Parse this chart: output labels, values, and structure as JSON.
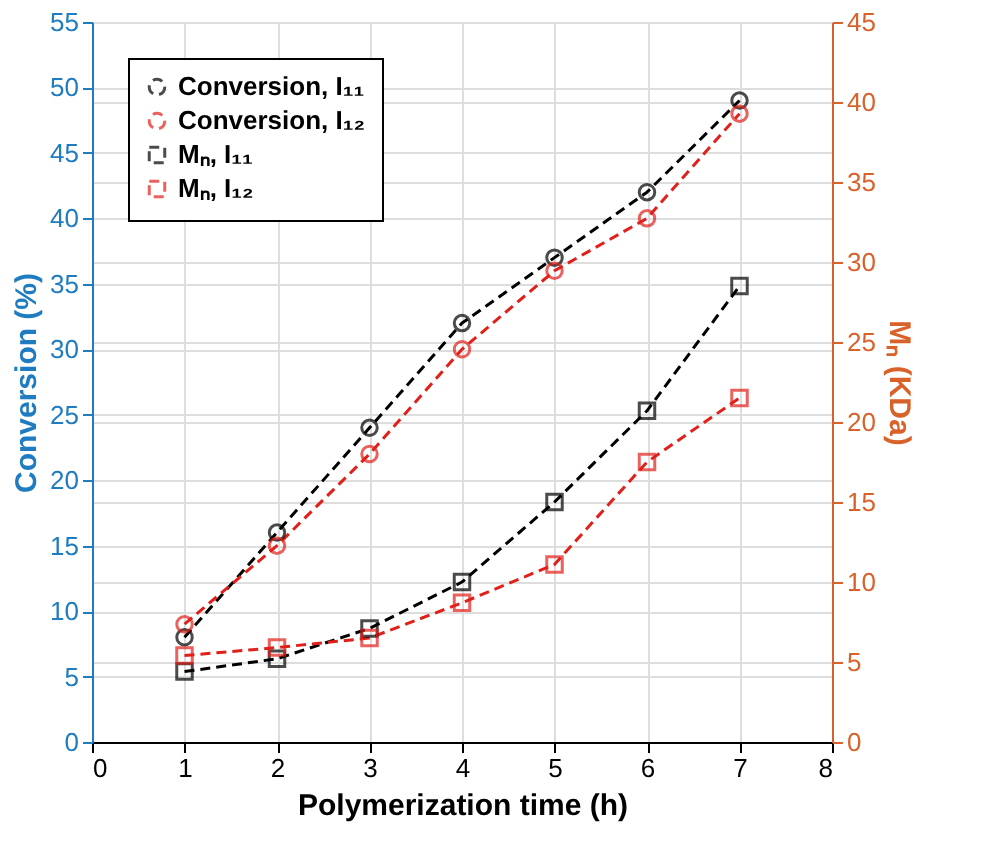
{
  "chart_data": {
    "type": "line",
    "xlabel": "Polymerization time (h)",
    "ylabel": "Conversion (%)",
    "y2label": "Mₙ (KDa)",
    "x": [
      1,
      2,
      3,
      4,
      5,
      6,
      7
    ],
    "series": [
      {
        "name": "Conversion, I₁₁",
        "color": "#000000",
        "marker": "circle",
        "values": [
          8,
          16,
          24,
          32,
          37,
          42,
          49
        ]
      },
      {
        "name": "Conversion, I₁₂",
        "color": "#e0201b",
        "marker": "circle",
        "values": [
          9,
          15,
          22,
          30,
          36,
          40,
          48
        ]
      },
      {
        "name": "Mₙ, I₁₁",
        "color": "#000000",
        "marker": "square",
        "axis": "y2",
        "values": [
          4.4,
          5.2,
          7.1,
          10,
          15,
          20.7,
          28.5
        ]
      },
      {
        "name": "Mₙ, I₁₂",
        "color": "#e0201b",
        "marker": "square",
        "axis": "y2",
        "values": [
          5.4,
          5.9,
          6.5,
          8.7,
          11.1,
          17.5,
          21.5
        ]
      }
    ],
    "xlim": [
      0,
      8
    ],
    "xticks": [
      0,
      1,
      2,
      3,
      4,
      5,
      6,
      7,
      8
    ],
    "ylim": [
      0,
      55
    ],
    "yticks": [
      0,
      5,
      10,
      15,
      20,
      25,
      30,
      35,
      40,
      45,
      50,
      55
    ],
    "y2lim": [
      0,
      45
    ],
    "y2ticks": [
      0,
      5,
      10,
      15,
      20,
      25,
      30,
      35,
      40,
      45
    ],
    "grid": true,
    "legend": "top left",
    "line_style": "dashed"
  }
}
